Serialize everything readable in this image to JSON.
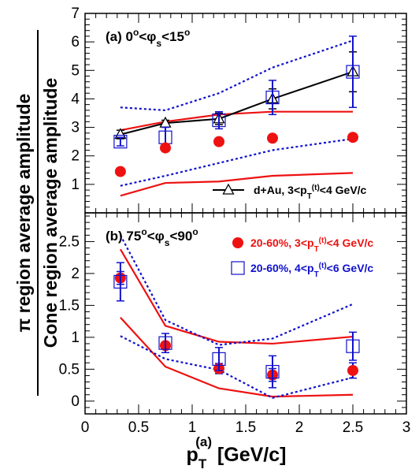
{
  "chart_data": {
    "type": "scatter",
    "ylabel_line1": "π region average amplitude",
    "ylabel_line2": "Cone region average amplitude",
    "xlabel": {
      "main": "p",
      "sub": "T",
      "sup": "(a)",
      "units": "[GeV/c]"
    },
    "xlim": [
      0,
      3
    ],
    "x_ticks": [
      "0",
      "0.5",
      "1",
      "1.5",
      "2",
      "2.5",
      "3"
    ],
    "colors": {
      "red": "#ee1111",
      "blue": "#1111cc",
      "black": "#000000"
    },
    "panels": [
      {
        "id": "top",
        "label": {
          "text": "(a) 0",
          "sup1": "o",
          "mid": "<φ",
          "sub": "s",
          "tail": "<15",
          "sup2": "o"
        },
        "ylim": [
          0,
          7
        ],
        "y_ticks": [
          1,
          2,
          3,
          4,
          5,
          6,
          7
        ],
        "series": [
          {
            "kind": "open-triangle-line",
            "name": {
              "pre": "d+Au, 3<p",
              "sub": "T",
              "sup": "(t)",
              "post": "<4 GeV/c"
            },
            "x": [
              0.33,
              0.75,
              1.25,
              1.75,
              2.5
            ],
            "y": [
              2.75,
              3.15,
              3.3,
              4.0,
              4.95
            ],
            "err": [
              0.15,
              0.1,
              0.2,
              0.35,
              0.7
            ]
          },
          {
            "kind": "open-square",
            "x": [
              0.33,
              0.75,
              1.25,
              1.75,
              2.5
            ],
            "y": [
              2.5,
              2.65,
              3.25,
              4.05,
              4.95
            ],
            "err": [
              0.15,
              0.35,
              0.3,
              0.6,
              1.25
            ]
          },
          {
            "kind": "filled-circle",
            "x": [
              0.33,
              0.75,
              1.25,
              1.75,
              2.5
            ],
            "y": [
              1.45,
              2.28,
              2.5,
              2.62,
              2.65
            ],
            "err": [
              0.0,
              0.0,
              0.0,
              0.0,
              0.0
            ]
          }
        ],
        "bands": [
          {
            "color": "red",
            "style": "solid",
            "x": [
              0.33,
              0.75,
              1.25,
              1.75,
              2.5
            ],
            "y": [
              2.9,
              3.2,
              3.45,
              3.55,
              3.55
            ]
          },
          {
            "color": "red",
            "style": "solid",
            "x": [
              0.33,
              0.75,
              1.25,
              1.75,
              2.5
            ],
            "y": [
              0.6,
              1.05,
              1.1,
              1.3,
              1.4
            ]
          },
          {
            "color": "blue",
            "style": "dotted",
            "x": [
              0.33,
              0.75,
              1.25,
              1.75,
              2.5
            ],
            "y": [
              3.7,
              3.6,
              4.2,
              5.1,
              6.05
            ]
          },
          {
            "color": "blue",
            "style": "dotted",
            "x": [
              0.33,
              0.75,
              1.25,
              1.75,
              2.5
            ],
            "y": [
              0.95,
              1.3,
              1.75,
              2.2,
              2.6
            ]
          }
        ]
      },
      {
        "id": "bottom",
        "label": {
          "text": "(b) 75",
          "sup1": "o",
          "mid": "<φ",
          "sub": "s",
          "tail": "<90",
          "sup2": "o"
        },
        "ylim": [
          -0.2,
          2.95
        ],
        "y_ticks": [
          0,
          0.5,
          1,
          1.5,
          2,
          2.5
        ],
        "y_tick_labels": [
          "0",
          "0.5",
          "1",
          "1.5",
          "2",
          "2.5"
        ],
        "series": [
          {
            "kind": "filled-circle",
            "name": {
              "pre": "20-60%, 3<p",
              "sub": "T",
              "sup": "(t)",
              "post": "<4 GeV/c"
            },
            "x": [
              0.33,
              0.75,
              1.25,
              1.75,
              2.5
            ],
            "y": [
              1.93,
              0.87,
              0.51,
              0.41,
              0.48
            ],
            "err": [
              0.1,
              0.05,
              0.08,
              0.1,
              0.12
            ]
          },
          {
            "kind": "open-square",
            "name": {
              "pre": "20-60%, 4<p",
              "sub": "T",
              "sup": "(t)",
              "post": "<6 GeV/c"
            },
            "x": [
              0.33,
              0.75,
              1.25,
              1.75,
              2.5
            ],
            "y": [
              1.87,
              0.91,
              0.66,
              0.46,
              0.86
            ],
            "err": [
              0.3,
              0.15,
              0.18,
              0.25,
              0.22
            ]
          }
        ],
        "bands": [
          {
            "color": "red",
            "style": "solid",
            "x": [
              0.33,
              0.75,
              1.25,
              1.75,
              2.5
            ],
            "y": [
              2.38,
              1.18,
              0.93,
              0.9,
              1.01
            ]
          },
          {
            "color": "red",
            "style": "solid",
            "x": [
              0.33,
              0.75,
              1.25,
              1.75,
              2.5
            ],
            "y": [
              1.31,
              0.54,
              0.2,
              0.07,
              0.1
            ]
          },
          {
            "color": "blue",
            "style": "dotted",
            "x": [
              0.33,
              0.75,
              1.25,
              1.75,
              2.5
            ],
            "y": [
              2.6,
              1.27,
              0.88,
              0.98,
              1.52
            ]
          },
          {
            "color": "blue",
            "style": "dotted",
            "x": [
              0.33,
              0.75,
              1.25,
              1.75,
              2.5
            ],
            "y": [
              1.02,
              0.66,
              0.49,
              0.05,
              0.37
            ]
          }
        ]
      }
    ]
  }
}
